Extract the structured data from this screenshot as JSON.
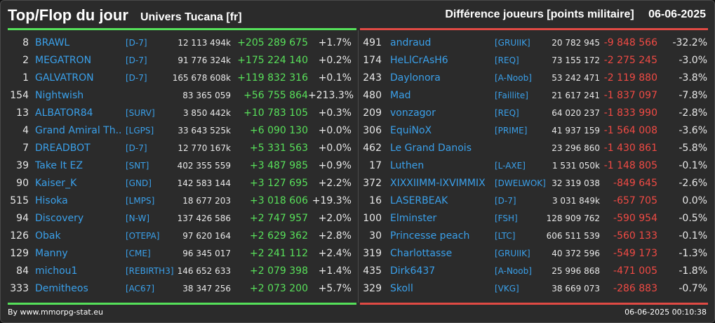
{
  "header": {
    "title": "Top/Flop du jour",
    "universe": "Univers Tucana [fr]",
    "metric": "Différence joueurs [points militaire]",
    "date": "06-06-2025"
  },
  "colors": {
    "positive": "#58e05a",
    "negative": "#f04a44",
    "link": "#3aa0ea",
    "top_line": "#55e05a",
    "flop_line": "#e04a44"
  },
  "top": [
    {
      "rank": "8",
      "name": "BRAWL",
      "alliance": "[D-7]",
      "score": "12 113 494k",
      "diff": "+205 289 675",
      "pct": "+1.7%"
    },
    {
      "rank": "2",
      "name": "MEGATRON",
      "alliance": "[D-7]",
      "score": "91 776 324k",
      "diff": "+175 224 140",
      "pct": "+0.2%"
    },
    {
      "rank": "1",
      "name": "GALVATRON",
      "alliance": "[D-7]",
      "score": "165 678 608k",
      "diff": "+119 832 316",
      "pct": "+0.1%"
    },
    {
      "rank": "154",
      "name": "Nightwish",
      "alliance": "",
      "score": "83 365 059",
      "diff": "+56 755 864",
      "pct": "+213.3%"
    },
    {
      "rank": "13",
      "name": "ALBATOR84",
      "alliance": "[SURV]",
      "score": "3 850 442k",
      "diff": "+10 783 105",
      "pct": "+0.3%"
    },
    {
      "rank": "4",
      "name": "Grand Amiral Th...",
      "alliance": "[LGPS]",
      "score": "33 643 525k",
      "diff": "+6 090 130",
      "pct": "+0.0%"
    },
    {
      "rank": "7",
      "name": "DREADBOT",
      "alliance": "[D-7]",
      "score": "12 770 167k",
      "diff": "+5 331 563",
      "pct": "+0.0%"
    },
    {
      "rank": "39",
      "name": "Take It EZ",
      "alliance": "[SNT]",
      "score": "402 355 559",
      "diff": "+3 487 985",
      "pct": "+0.9%"
    },
    {
      "rank": "90",
      "name": "Kaiser_K",
      "alliance": "[GND]",
      "score": "142 583 144",
      "diff": "+3 127 695",
      "pct": "+2.2%"
    },
    {
      "rank": "515",
      "name": "Hisoka",
      "alliance": "[LMPS]",
      "score": "18 677 203",
      "diff": "+3 018 606",
      "pct": "+19.3%"
    },
    {
      "rank": "94",
      "name": "Discovery",
      "alliance": "[N-W]",
      "score": "137 426 586",
      "diff": "+2 747 957",
      "pct": "+2.0%"
    },
    {
      "rank": "126",
      "name": "Obak",
      "alliance": "[OTEPA]",
      "score": "97 620 164",
      "diff": "+2 629 362",
      "pct": "+2.8%"
    },
    {
      "rank": "129",
      "name": "Manny",
      "alliance": "[CME]",
      "score": "96 345 017",
      "diff": "+2 241 112",
      "pct": "+2.4%"
    },
    {
      "rank": "84",
      "name": "michou1",
      "alliance": "[REBIRTH3]",
      "score": "146 652 633",
      "diff": "+2 079 398",
      "pct": "+1.4%"
    },
    {
      "rank": "333",
      "name": "Demitheos",
      "alliance": "[AC67]",
      "score": "38 347 256",
      "diff": "+2 073 200",
      "pct": "+5.7%"
    }
  ],
  "flop": [
    {
      "rank": "491",
      "name": "andraud",
      "alliance": "[GRUIIK]",
      "score": "20 782 945",
      "diff": "-9 848 566",
      "pct": "-32.2%"
    },
    {
      "rank": "174",
      "name": "HeLlCrAsH6",
      "alliance": "[REQ]",
      "score": "73 155 172",
      "diff": "-2 275 245",
      "pct": "-3.0%"
    },
    {
      "rank": "243",
      "name": "Daylonora",
      "alliance": "[A-Noob]",
      "score": "53 242 471",
      "diff": "-2 119 880",
      "pct": "-3.8%"
    },
    {
      "rank": "480",
      "name": "Mad",
      "alliance": "[Faillite]",
      "score": "21 617 241",
      "diff": "-1 837 097",
      "pct": "-7.8%"
    },
    {
      "rank": "209",
      "name": "vonzagor",
      "alliance": "[REQ]",
      "score": "64 020 237",
      "diff": "-1 833 990",
      "pct": "-2.8%"
    },
    {
      "rank": "306",
      "name": "EquiNoX",
      "alliance": "[PRIME]",
      "score": "41 937 159",
      "diff": "-1 564 008",
      "pct": "-3.6%"
    },
    {
      "rank": "462",
      "name": "Le Grand Danois",
      "alliance": "",
      "score": "23 296 860",
      "diff": "-1 430 861",
      "pct": "-5.8%"
    },
    {
      "rank": "17",
      "name": "Luthen",
      "alliance": "[L-AXE]",
      "score": "1 531 050k",
      "diff": "-1 148 805",
      "pct": "-0.1%"
    },
    {
      "rank": "372",
      "name": "XIXXIIMM-IXVIMMIX",
      "alliance": "[DWELWOK]",
      "score": "32 319 038",
      "diff": "-849 645",
      "pct": "-2.6%"
    },
    {
      "rank": "16",
      "name": "LASERBEAK",
      "alliance": "[D-7]",
      "score": "3 031 849k",
      "diff": "-657 705",
      "pct": "0.0%"
    },
    {
      "rank": "100",
      "name": "Elminster",
      "alliance": "[FSH]",
      "score": "128 909 762",
      "diff": "-590 954",
      "pct": "-0.5%"
    },
    {
      "rank": "30",
      "name": "Princesse peach",
      "alliance": "[LTC]",
      "score": "606 511 539",
      "diff": "-560 133",
      "pct": "-0.1%"
    },
    {
      "rank": "319",
      "name": "Charlottasse",
      "alliance": "[GRUIIK]",
      "score": "40 372 596",
      "diff": "-549 173",
      "pct": "-1.3%"
    },
    {
      "rank": "435",
      "name": "Dirk6437",
      "alliance": "[A-Noob]",
      "score": "25 996 868",
      "diff": "-471 005",
      "pct": "-1.8%"
    },
    {
      "rank": "329",
      "name": "Skoll",
      "alliance": "[VKG]",
      "score": "38 669 073",
      "diff": "-286 883",
      "pct": "-0.7%"
    }
  ],
  "footer": {
    "source": "By www.mmorpg-stat.eu",
    "timestamp": "06-06-2025 00:10:38"
  }
}
